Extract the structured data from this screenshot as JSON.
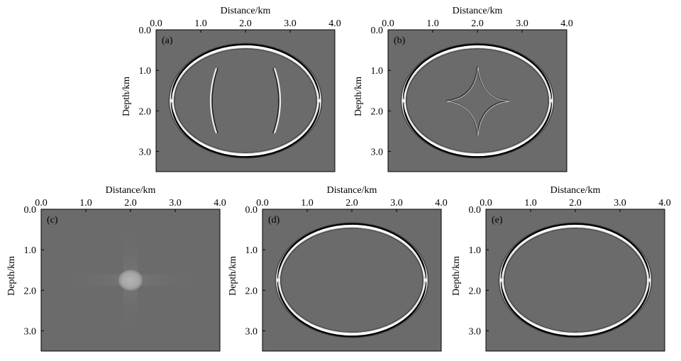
{
  "chart_data": [
    {
      "type": "heatmap",
      "panel_label": "(a)",
      "xlabel": "Distance/km",
      "ylabel": "Depth/km",
      "xlim": [
        0,
        4
      ],
      "ylim": [
        0,
        3.5
      ],
      "y_inverted": true,
      "xticks": [
        "0.0",
        "1.0",
        "2.0",
        "3.0",
        "4.0"
      ],
      "yticks": [
        "0.0",
        "1.0",
        "2.0",
        "3.0"
      ],
      "xticks_values": [
        0,
        1,
        2,
        3,
        4
      ],
      "yticks_values": [
        0,
        1,
        2,
        3
      ],
      "background_color": "#6b6b6b",
      "features": {
        "outer_front": {
          "center": [
            2.0,
            1.75
          ],
          "half_width": 1.65,
          "top": 0.4,
          "bottom": 3.1
        },
        "inner_arcs": [
          {
            "x_near": 1.35,
            "y_range": [
              0.95,
              2.55
            ]
          },
          {
            "x_near": 2.65,
            "y_range": [
              0.95,
              2.55
            ]
          }
        ]
      }
    },
    {
      "type": "heatmap",
      "panel_label": "(b)",
      "xlabel": "Distance/km",
      "ylabel": "Depth/km",
      "xlim": [
        0,
        4
      ],
      "ylim": [
        0,
        3.5
      ],
      "y_inverted": true,
      "xticks": [
        "0.0",
        "1.0",
        "2.0",
        "3.0",
        "4.0"
      ],
      "yticks": [
        "0.0",
        "1.0",
        "2.0",
        "3.0"
      ],
      "xticks_values": [
        0,
        1,
        2,
        3,
        4
      ],
      "yticks_values": [
        0,
        1,
        2,
        3
      ],
      "background_color": "#6b6b6b",
      "features": {
        "outer_front": {
          "center": [
            2.0,
            1.75
          ],
          "half_width": 1.65,
          "top": 0.4,
          "bottom": 3.1
        },
        "cusp_star": {
          "center": [
            2.0,
            1.75
          ],
          "x_range": [
            1.3,
            2.7
          ],
          "y_range": [
            0.9,
            2.6
          ]
        }
      }
    },
    {
      "type": "heatmap",
      "panel_label": "(c)",
      "xlabel": "Distance/km",
      "ylabel": "Depth/km",
      "xlim": [
        0,
        4
      ],
      "ylim": [
        0,
        3.5
      ],
      "y_inverted": true,
      "xticks": [
        "0.0",
        "1.0",
        "2.0",
        "3.0",
        "4.0"
      ],
      "yticks": [
        "0.0",
        "1.0",
        "2.0",
        "3.0"
      ],
      "xticks_values": [
        0,
        1,
        2,
        3,
        4
      ],
      "yticks_values": [
        0,
        1,
        2,
        3
      ],
      "background_color": "#6b6b6b",
      "features": {
        "source_blob": {
          "center": [
            2.0,
            1.75
          ],
          "radius": 0.27
        }
      }
    },
    {
      "type": "heatmap",
      "panel_label": "(d)",
      "xlabel": "Distance/km",
      "ylabel": "Depth/km",
      "xlim": [
        0,
        4
      ],
      "ylim": [
        0,
        3.5
      ],
      "y_inverted": true,
      "xticks": [
        "0.0",
        "1.0",
        "2.0",
        "3.0",
        "4.0"
      ],
      "yticks": [
        "0.0",
        "1.0",
        "2.0",
        "3.0"
      ],
      "xticks_values": [
        0,
        1,
        2,
        3,
        4
      ],
      "yticks_values": [
        0,
        1,
        2,
        3
      ],
      "background_color": "#6b6b6b",
      "features": {
        "outer_front": {
          "center": [
            2.0,
            1.75
          ],
          "half_width": 1.65,
          "top": 0.4,
          "bottom": 3.1
        }
      }
    },
    {
      "type": "heatmap",
      "panel_label": "(e)",
      "xlabel": "Distance/km",
      "ylabel": "Depth/km",
      "xlim": [
        0,
        4
      ],
      "ylim": [
        0,
        3.5
      ],
      "y_inverted": true,
      "xticks": [
        "0.0",
        "1.0",
        "2.0",
        "3.0",
        "4.0"
      ],
      "yticks": [
        "0.0",
        "1.0",
        "2.0",
        "3.0"
      ],
      "xticks_values": [
        0,
        1,
        2,
        3,
        4
      ],
      "yticks_values": [
        0,
        1,
        2,
        3
      ],
      "background_color": "#6b6b6b",
      "features": {
        "outer_front": {
          "center": [
            2.0,
            1.75
          ],
          "half_width": 1.65,
          "top": 0.4,
          "bottom": 3.1
        }
      }
    }
  ]
}
